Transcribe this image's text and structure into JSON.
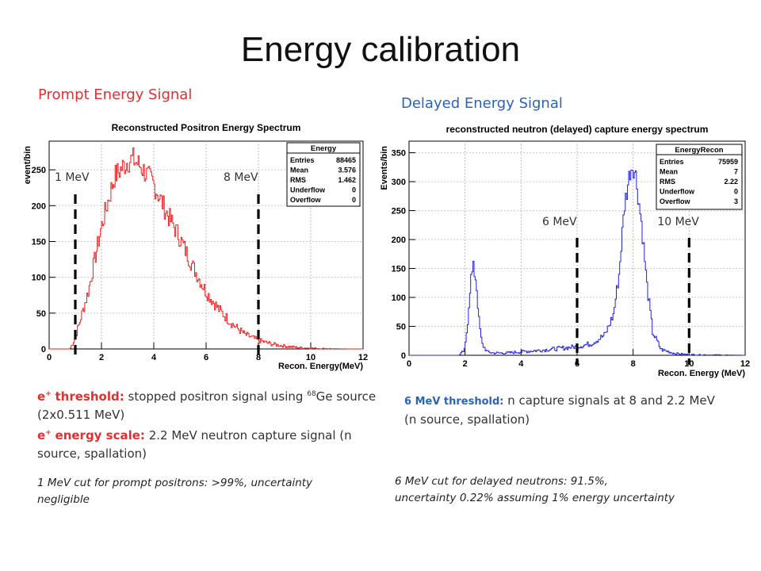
{
  "slide": {
    "title": "Energy calibration",
    "prompt_label": "Prompt Energy Signal",
    "delayed_label": "Delayed Energy Signal",
    "left_text": {
      "threshold_label": "threshold:",
      "threshold_text": " stopped positron signal using ",
      "ge_mass": "68",
      "ge_rest": "Ge source (2x0.511 MeV)",
      "scale_label": "energy scale:",
      "scale_text": " 2.2 MeV neutron capture signal (n source, spallation)",
      "positron_symbol": "e",
      "positron_sup": "+",
      "note": "1 MeV cut for prompt positrons: >99%, uncertainty negligible"
    },
    "right_text": {
      "threshold_label": "6 MeV threshold:",
      "threshold_text": " n capture signals at 8 and 2.2 MeV (n source, spallation)",
      "note_line1": "6 MeV cut for delayed neutrons: 91.5%,",
      "note_line2": "uncertainty 0.22% assuming 1% energy uncertainty"
    }
  },
  "chart_data": [
    {
      "type": "histogram",
      "title": "Reconstructed Positron Energy Spectrum",
      "xlabel": "Recon. Energy(MeV)",
      "ylabel": "event/bin",
      "xlim": [
        0,
        12
      ],
      "ylim": [
        0,
        290
      ],
      "x_ticks": [
        0,
        2,
        4,
        6,
        8,
        10,
        12
      ],
      "y_ticks": [
        0,
        50,
        100,
        150,
        200,
        250
      ],
      "color": "#ee2020",
      "grid": true,
      "stats": {
        "name": "Energy",
        "rows": [
          [
            "Entries",
            "88465"
          ],
          [
            "Mean",
            "3.576"
          ],
          [
            "RMS",
            "1.462"
          ],
          [
            "Underflow",
            "0"
          ],
          [
            "Overflow",
            "0"
          ]
        ]
      },
      "cut_lines": [
        {
          "x": 1,
          "label": "1 MeV"
        },
        {
          "x": 8,
          "label": "8 MeV"
        }
      ],
      "series": [
        {
          "x": [
            0.8,
            1.0,
            1.5,
            2.0,
            2.5,
            3.0,
            3.2,
            3.5,
            4.0,
            4.5,
            5.0,
            5.5,
            6.0,
            6.5,
            7.0,
            7.5,
            8.0,
            8.5,
            9.0,
            9.5,
            10.0,
            10.5,
            11.0,
            11.5,
            12.0
          ],
          "y": [
            0,
            15,
            80,
            170,
            240,
            262,
            265,
            255,
            230,
            190,
            155,
            115,
            80,
            55,
            35,
            20,
            12,
            7,
            4,
            2,
            1,
            0.5,
            0.2,
            0,
            0
          ]
        }
      ]
    },
    {
      "type": "histogram",
      "title": "reconstructed neutron (delayed) capture energy spectrum",
      "xlabel": "Recon. Energy (MeV)",
      "ylabel": "Events/bin",
      "xlim": [
        0,
        12
      ],
      "ylim": [
        0,
        370
      ],
      "x_ticks": [
        0,
        2,
        4,
        6,
        8,
        10,
        12
      ],
      "y_ticks": [
        0,
        50,
        100,
        150,
        200,
        250,
        300,
        350
      ],
      "color": "#2222dd",
      "grid": true,
      "stats": {
        "name": "EnergyRecon",
        "rows": [
          [
            "Entries",
            "75959"
          ],
          [
            "Mean",
            "7"
          ],
          [
            "RMS",
            "2.22"
          ],
          [
            "Underflow",
            "0"
          ],
          [
            "Overflow",
            "3"
          ]
        ]
      },
      "cut_lines": [
        {
          "x": 6,
          "label": "6 MeV"
        },
        {
          "x": 10,
          "label": "10 MeV"
        }
      ],
      "series": [
        {
          "x": [
            1.8,
            2.0,
            2.1,
            2.2,
            2.3,
            2.4,
            2.5,
            2.6,
            2.8,
            3.0,
            3.5,
            4.0,
            5.0,
            6.0,
            6.5,
            7.0,
            7.3,
            7.5,
            7.7,
            7.9,
            8.0,
            8.1,
            8.3,
            8.5,
            8.7,
            9.0,
            9.5,
            10.0,
            12.0
          ],
          "y": [
            0,
            10,
            60,
            130,
            150,
            130,
            60,
            20,
            6,
            4,
            4,
            6,
            10,
            15,
            20,
            35,
            70,
            140,
            260,
            320,
            330,
            310,
            230,
            120,
            40,
            10,
            3,
            1,
            0
          ]
        }
      ]
    }
  ]
}
